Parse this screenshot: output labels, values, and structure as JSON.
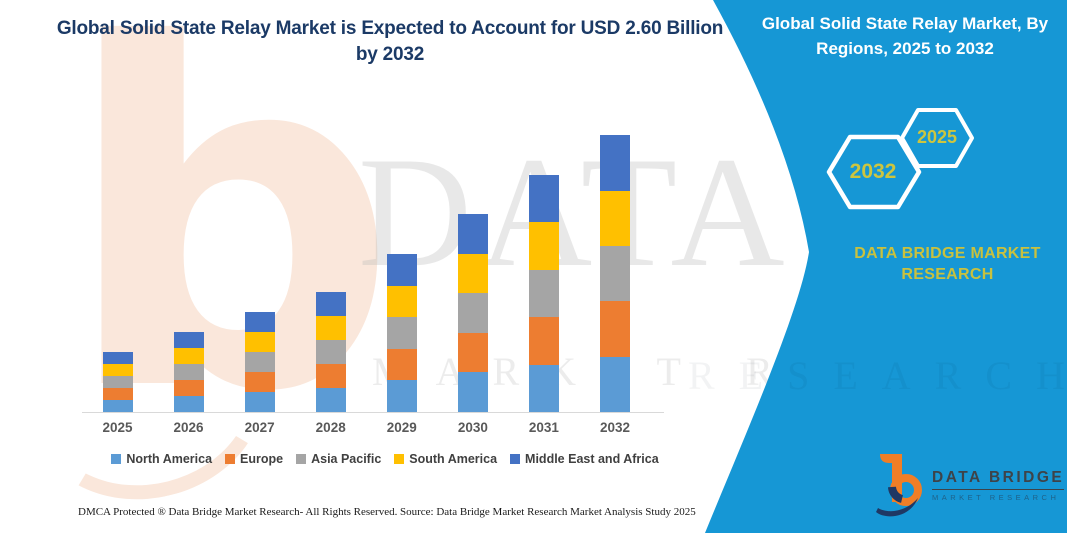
{
  "main": {
    "title": "Global Solid State Relay Market is Expected to Account for USD 2.60 Billion by 2032"
  },
  "watermark": {
    "letter": "b",
    "text_large": "DATA BRIDGE",
    "text_small": "MARKET RESEARCH",
    "teal_overlay": "RESEARCH"
  },
  "side_panel": {
    "accent_color": "#1697D5",
    "title_lines": [
      "Global Solid State Relay Market, By",
      "Regions, 2025 to 2032"
    ],
    "hexagons": [
      {
        "label": "2032"
      },
      {
        "label": "2025"
      }
    ],
    "brand_line1": "DATA BRIDGE MARKET",
    "brand_line2": "RESEARCH",
    "hex_text_color": "#CDC53F"
  },
  "logo": {
    "name": "DATA BRIDGE",
    "subtitle": "MARKET RESEARCH"
  },
  "footer": {
    "left": "DMCA Protected ® Data Bridge Market Research-  All Rights Reserved.",
    "source": "Source: Data Bridge Market Research  Market Analysis Study 2025"
  },
  "chart_data": {
    "type": "bar",
    "stacked": true,
    "title": "Global Solid State Relay Market is Expected to Account for USD 2.60 Billion by 2032",
    "unit": "USD Billion",
    "categories": [
      "2025",
      "2026",
      "2027",
      "2028",
      "2029",
      "2030",
      "2031",
      "2032"
    ],
    "series": [
      {
        "name": "North America",
        "color": "#5B9BD5",
        "values": [
          0.112,
          0.15,
          0.188,
          0.226,
          0.296,
          0.372,
          0.446,
          0.52
        ]
      },
      {
        "name": "Europe",
        "color": "#ED7D31",
        "values": [
          0.112,
          0.15,
          0.188,
          0.226,
          0.296,
          0.372,
          0.446,
          0.52
        ]
      },
      {
        "name": "Asia Pacific",
        "color": "#A5A5A5",
        "values": [
          0.112,
          0.15,
          0.188,
          0.226,
          0.296,
          0.372,
          0.446,
          0.52
        ]
      },
      {
        "name": "South America",
        "color": "#FFC000",
        "values": [
          0.112,
          0.15,
          0.188,
          0.226,
          0.296,
          0.372,
          0.446,
          0.52
        ]
      },
      {
        "name": "Middle East and Africa",
        "color": "#4472C4",
        "values": [
          0.112,
          0.15,
          0.188,
          0.226,
          0.296,
          0.372,
          0.446,
          0.52
        ]
      }
    ],
    "totals": [
      0.56,
      0.75,
      0.94,
      1.13,
      1.48,
      1.86,
      2.23,
      2.6
    ],
    "ylim": [
      0,
      2.8
    ],
    "grid": false,
    "y_axis_visible": false,
    "legend_position": "bottom"
  }
}
